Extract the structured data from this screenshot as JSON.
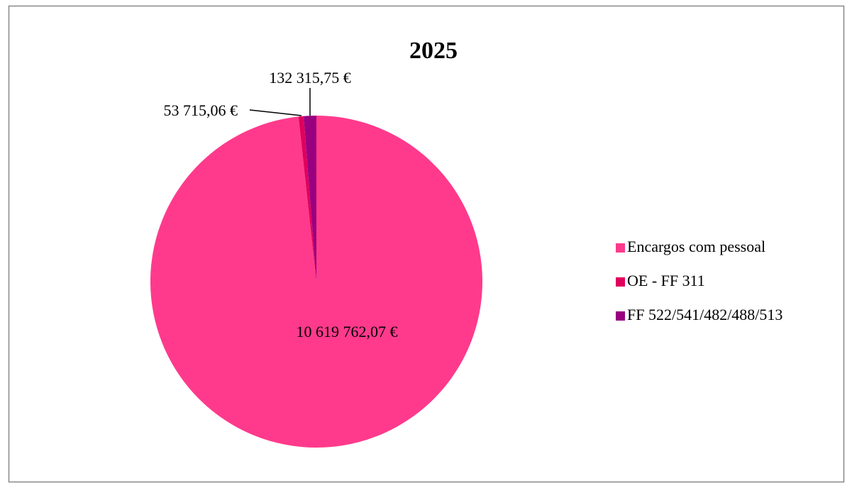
{
  "chart_data": {
    "type": "pie",
    "title": "2025",
    "categories": [
      "Encargos com pessoal",
      "OE - FF 311",
      "FF 522/541/482/488/513"
    ],
    "values": [
      10619762.07,
      53715.06,
      132315.75
    ],
    "value_labels": [
      "10 619 762,07 €",
      "53 715,06 €",
      "132 315,75 €"
    ],
    "colors": [
      "#ff3a8c",
      "#e0005e",
      "#990080"
    ],
    "legend": "right"
  }
}
